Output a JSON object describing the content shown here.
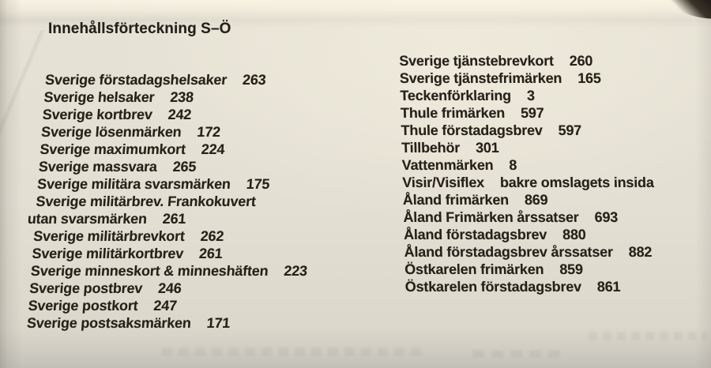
{
  "photo": {
    "title": "Innehållsförteckning S–Ö",
    "paper_color": "#e3dfd3",
    "ink_color": "#262219"
  },
  "toc": {
    "left": [
      {
        "label": "Sverige förstadagshelsaker",
        "page": "263"
      },
      {
        "label": "Sverige helsaker",
        "page": "238"
      },
      {
        "label": "Sverige kortbrev",
        "page": "242"
      },
      {
        "label": "Sverige lösenmärken",
        "page": "172"
      },
      {
        "label": "Sverige maximumkort",
        "page": "224"
      },
      {
        "label": "Sverige massvara",
        "page": "265"
      },
      {
        "label": "Sverige militära svarsmärken",
        "page": "175"
      },
      {
        "label": "Sverige militärbrev. Frankokuvert",
        "page": ""
      },
      {
        "label": "utan svarsmärken",
        "page": "261",
        "cont": true
      },
      {
        "label": "Sverige militärbrevkort",
        "page": "262"
      },
      {
        "label": "Sverige militärkortbrev",
        "page": "261"
      },
      {
        "label": "Sverige minneskort & minneshäften",
        "page": "223"
      },
      {
        "label": "Sverige postbrev",
        "page": "246"
      },
      {
        "label": "Sverige postkort",
        "page": "247"
      },
      {
        "label": "Sverige postsaksmärken",
        "page": "171"
      }
    ],
    "right": [
      {
        "label": "Sverige tjänstebrevkort",
        "page": "260"
      },
      {
        "label": "Sverige tjänstefrimärken",
        "page": "165"
      },
      {
        "label": "Teckenförklaring",
        "page": "3"
      },
      {
        "label": "Thule frimärken",
        "page": "597"
      },
      {
        "label": "Thule förstadagsbrev",
        "page": "597"
      },
      {
        "label": "Tillbehör",
        "page": "301"
      },
      {
        "label": "Vattenmärken",
        "page": "8"
      },
      {
        "label": "Visir/Visiflex",
        "page": "bakre omslagets insida"
      },
      {
        "label": "Åland frimärken",
        "page": "869"
      },
      {
        "label": "Åland Frimärken årssatser",
        "page": "693"
      },
      {
        "label": "Åland förstadagsbrev",
        "page": "880"
      },
      {
        "label": "Åland förstadagsbrev årssatser",
        "page": "882"
      },
      {
        "label": "Östkarelen frimärken",
        "page": "859"
      },
      {
        "label": "Östkarelen förstadagsbrev",
        "page": "861"
      }
    ]
  }
}
